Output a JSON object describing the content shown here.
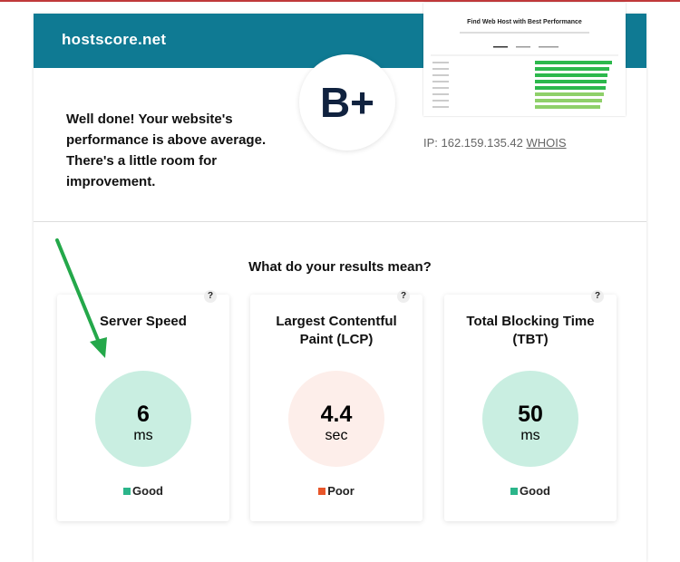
{
  "header": {
    "site": "hostscore.net"
  },
  "thumbnail": {
    "title": "Find Web Host with Best Performance"
  },
  "grade": "B+",
  "message": "Well done! Your website's performance is above average. There's a little room for improvement.",
  "ip": {
    "label": "IP: 162.159.135.42",
    "link": "WHOIS"
  },
  "section_title": "What do your results mean?",
  "help": "?",
  "metrics": [
    {
      "title": "Server Speed",
      "value": 6,
      "unit": "ms",
      "status": "Good",
      "status_color": "#2bb58a",
      "circle_color": "#c9eee1"
    },
    {
      "title": "Largest Contentful Paint (LCP)",
      "value": 4.4,
      "unit": "sec",
      "status": "Poor",
      "status_color": "#e8562a",
      "circle_color": "#fdeeea"
    },
    {
      "title": "Total Blocking Time (TBT)",
      "value": 50,
      "unit": "ms",
      "status": "Good",
      "status_color": "#2bb58a",
      "circle_color": "#c9eee1"
    }
  ]
}
